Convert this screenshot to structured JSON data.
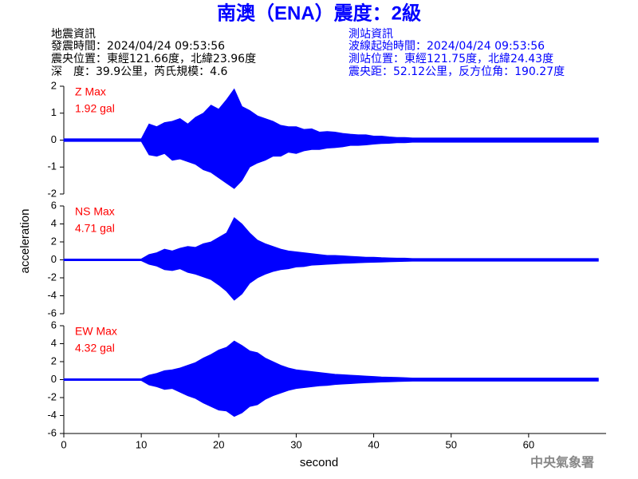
{
  "title": "南澳（ENA）震度：2級",
  "info_left": [
    "地震資訊",
    "發震時間：2024/04/24 09:53:56",
    "震央位置：東經121.66度，北緯23.96度",
    "深　度：39.9公里，芮氏規模：4.6"
  ],
  "info_right": [
    "測站資訊",
    "波線起始時間：2024/04/24 09:53:56",
    "測站位置：東經121.75度，北緯24.43度",
    "震央距：52.12公里，反方位角：190.27度"
  ],
  "ylabel": "acceleration",
  "footer": "中央氣象署",
  "chart_data": [
    {
      "type": "area",
      "annotation": [
        "Z Max",
        "1.92 gal"
      ],
      "xlim": [
        0,
        70
      ],
      "ylim": [
        -2,
        2
      ],
      "yticks": [
        -2,
        -1,
        0,
        1,
        2
      ],
      "x": [
        0,
        1,
        2,
        3,
        4,
        5,
        6,
        7,
        8,
        9,
        10,
        11,
        12,
        13,
        14,
        15,
        16,
        17,
        18,
        19,
        20,
        21,
        22,
        23,
        24,
        25,
        26,
        27,
        28,
        29,
        30,
        31,
        32,
        33,
        34,
        35,
        36,
        37,
        38,
        39,
        40,
        41,
        42,
        43,
        44,
        45,
        46,
        47,
        48,
        49,
        50,
        51,
        52,
        53,
        54,
        55,
        56,
        57,
        58,
        59,
        60,
        61,
        62,
        63,
        64,
        65,
        66,
        67,
        68,
        69
      ],
      "series": [
        {
          "color": "#0000ff",
          "values": [
            0.05,
            0.05,
            0.05,
            0.05,
            0.05,
            0.05,
            0.05,
            0.05,
            0.05,
            0.05,
            0.05,
            0.6,
            0.5,
            0.65,
            0.7,
            0.8,
            0.6,
            0.85,
            1.0,
            1.3,
            1.15,
            1.5,
            1.9,
            1.25,
            1.1,
            0.9,
            0.8,
            0.7,
            0.55,
            0.5,
            0.5,
            0.4,
            0.42,
            0.3,
            0.32,
            0.3,
            0.25,
            0.22,
            0.2,
            0.2,
            0.15,
            0.15,
            0.12,
            0.1,
            0.1,
            0.08,
            0.08,
            0.08,
            0.08,
            0.08,
            0.08,
            0.08,
            0.08,
            0.08,
            0.08,
            0.08,
            0.08,
            0.08,
            0.08,
            0.08,
            0.08,
            0.08,
            0.08,
            0.08,
            0.08,
            0.08,
            0.08,
            0.08,
            0.08,
            0.08
          ]
        },
        {
          "color": "#0000ff",
          "values": [
            -0.05,
            -0.05,
            -0.05,
            -0.05,
            -0.05,
            -0.05,
            -0.05,
            -0.05,
            -0.05,
            -0.05,
            -0.05,
            -0.55,
            -0.6,
            -0.5,
            -0.75,
            -0.7,
            -0.8,
            -0.9,
            -1.1,
            -1.2,
            -1.4,
            -1.6,
            -1.8,
            -1.5,
            -1.0,
            -0.85,
            -0.75,
            -0.6,
            -0.6,
            -0.45,
            -0.5,
            -0.4,
            -0.35,
            -0.35,
            -0.3,
            -0.28,
            -0.25,
            -0.2,
            -0.2,
            -0.18,
            -0.15,
            -0.13,
            -0.12,
            -0.1,
            -0.1,
            -0.08,
            -0.08,
            -0.08,
            -0.08,
            -0.08,
            -0.08,
            -0.08,
            -0.08,
            -0.08,
            -0.08,
            -0.08,
            -0.08,
            -0.08,
            -0.08,
            -0.08,
            -0.08,
            -0.08,
            -0.08,
            -0.08,
            -0.08,
            -0.08,
            -0.08,
            -0.08,
            -0.08,
            -0.08
          ]
        }
      ]
    },
    {
      "type": "area",
      "annotation": [
        "NS Max",
        "4.71 gal"
      ],
      "xlim": [
        0,
        70
      ],
      "ylim": [
        -6,
        6
      ],
      "yticks": [
        -6,
        -4,
        -2,
        0,
        2,
        4,
        6
      ],
      "x": [
        0,
        1,
        2,
        3,
        4,
        5,
        6,
        7,
        8,
        9,
        10,
        11,
        12,
        13,
        14,
        15,
        16,
        17,
        18,
        19,
        20,
        21,
        22,
        23,
        24,
        25,
        26,
        27,
        28,
        29,
        30,
        31,
        32,
        33,
        34,
        35,
        36,
        37,
        38,
        39,
        40,
        41,
        42,
        43,
        44,
        45,
        46,
        47,
        48,
        49,
        50,
        51,
        52,
        53,
        54,
        55,
        56,
        57,
        58,
        59,
        60,
        61,
        62,
        63,
        64,
        65,
        66,
        67,
        68,
        69
      ],
      "series": [
        {
          "color": "#0000ff",
          "values": [
            0.1,
            0.1,
            0.1,
            0.1,
            0.1,
            0.1,
            0.1,
            0.1,
            0.1,
            0.1,
            0.1,
            0.6,
            0.8,
            1.2,
            1.0,
            1.3,
            1.5,
            1.4,
            1.8,
            2.0,
            2.5,
            3.0,
            4.7,
            4.0,
            3.0,
            2.2,
            1.8,
            1.5,
            1.2,
            1.0,
            0.9,
            0.8,
            0.7,
            0.6,
            0.5,
            0.5,
            0.45,
            0.4,
            0.35,
            0.3,
            0.3,
            0.25,
            0.22,
            0.2,
            0.2,
            0.15,
            0.15,
            0.15,
            0.15,
            0.15,
            0.15,
            0.15,
            0.15,
            0.15,
            0.15,
            0.15,
            0.15,
            0.15,
            0.15,
            0.15,
            0.15,
            0.15,
            0.15,
            0.15,
            0.15,
            0.15,
            0.15,
            0.15,
            0.15,
            0.15
          ]
        },
        {
          "color": "#0000ff",
          "values": [
            -0.1,
            -0.1,
            -0.1,
            -0.1,
            -0.1,
            -0.1,
            -0.1,
            -0.1,
            -0.1,
            -0.1,
            -0.1,
            -0.5,
            -0.7,
            -1.1,
            -1.2,
            -1.0,
            -1.4,
            -1.6,
            -1.9,
            -2.2,
            -2.8,
            -3.5,
            -4.5,
            -3.8,
            -2.6,
            -2.0,
            -1.6,
            -1.3,
            -1.1,
            -1.0,
            -0.8,
            -0.75,
            -0.6,
            -0.55,
            -0.5,
            -0.45,
            -0.4,
            -0.38,
            -0.33,
            -0.3,
            -0.28,
            -0.25,
            -0.22,
            -0.2,
            -0.18,
            -0.15,
            -0.15,
            -0.15,
            -0.15,
            -0.15,
            -0.15,
            -0.15,
            -0.15,
            -0.15,
            -0.15,
            -0.15,
            -0.15,
            -0.15,
            -0.15,
            -0.15,
            -0.15,
            -0.15,
            -0.15,
            -0.15,
            -0.15,
            -0.15,
            -0.15,
            -0.15,
            -0.15,
            -0.15
          ]
        }
      ]
    },
    {
      "type": "area",
      "annotation": [
        "EW Max",
        "4.32 gal"
      ],
      "xlim": [
        0,
        70
      ],
      "ylim": [
        -6,
        6
      ],
      "yticks": [
        -6,
        -4,
        -2,
        0,
        2,
        4,
        6
      ],
      "xticks": [
        0,
        10,
        20,
        30,
        40,
        50,
        60
      ],
      "xlabel": "second",
      "x": [
        0,
        1,
        2,
        3,
        4,
        5,
        6,
        7,
        8,
        9,
        10,
        11,
        12,
        13,
        14,
        15,
        16,
        17,
        18,
        19,
        20,
        21,
        22,
        23,
        24,
        25,
        26,
        27,
        28,
        29,
        30,
        31,
        32,
        33,
        34,
        35,
        36,
        37,
        38,
        39,
        40,
        41,
        42,
        43,
        44,
        45,
        46,
        47,
        48,
        49,
        50,
        51,
        52,
        53,
        54,
        55,
        56,
        57,
        58,
        59,
        60,
        61,
        62,
        63,
        64,
        65,
        66,
        67,
        68,
        69
      ],
      "series": [
        {
          "color": "#0000ff",
          "values": [
            0.1,
            0.1,
            0.1,
            0.1,
            0.1,
            0.1,
            0.1,
            0.1,
            0.1,
            0.1,
            0.1,
            0.5,
            0.7,
            1.0,
            1.1,
            1.3,
            1.6,
            1.9,
            2.4,
            2.8,
            3.3,
            3.6,
            4.3,
            3.8,
            3.2,
            3.0,
            2.4,
            2.0,
            1.6,
            1.3,
            1.1,
            1.0,
            0.9,
            0.8,
            0.7,
            0.6,
            0.55,
            0.5,
            0.45,
            0.4,
            0.35,
            0.3,
            0.28,
            0.25,
            0.22,
            0.18,
            0.18,
            0.18,
            0.18,
            0.18,
            0.18,
            0.18,
            0.18,
            0.18,
            0.18,
            0.18,
            0.18,
            0.18,
            0.18,
            0.18,
            0.18,
            0.18,
            0.18,
            0.18,
            0.18,
            0.18,
            0.18,
            0.18,
            0.18,
            0.18
          ]
        },
        {
          "color": "#0000ff",
          "values": [
            -0.1,
            -0.1,
            -0.1,
            -0.1,
            -0.1,
            -0.1,
            -0.1,
            -0.1,
            -0.1,
            -0.1,
            -0.1,
            -0.6,
            -0.8,
            -1.1,
            -1.0,
            -1.4,
            -1.8,
            -2.1,
            -2.6,
            -3.0,
            -3.4,
            -3.5,
            -4.1,
            -3.7,
            -3.0,
            -2.8,
            -2.2,
            -1.8,
            -1.5,
            -1.2,
            -1.0,
            -0.9,
            -0.8,
            -0.7,
            -0.65,
            -0.55,
            -0.5,
            -0.45,
            -0.4,
            -0.35,
            -0.32,
            -0.28,
            -0.25,
            -0.22,
            -0.2,
            -0.18,
            -0.18,
            -0.18,
            -0.18,
            -0.18,
            -0.18,
            -0.18,
            -0.18,
            -0.18,
            -0.18,
            -0.18,
            -0.18,
            -0.18,
            -0.18,
            -0.18,
            -0.18,
            -0.18,
            -0.18,
            -0.18,
            -0.18,
            -0.18,
            -0.18,
            -0.18,
            -0.18,
            -0.18
          ]
        }
      ]
    }
  ]
}
